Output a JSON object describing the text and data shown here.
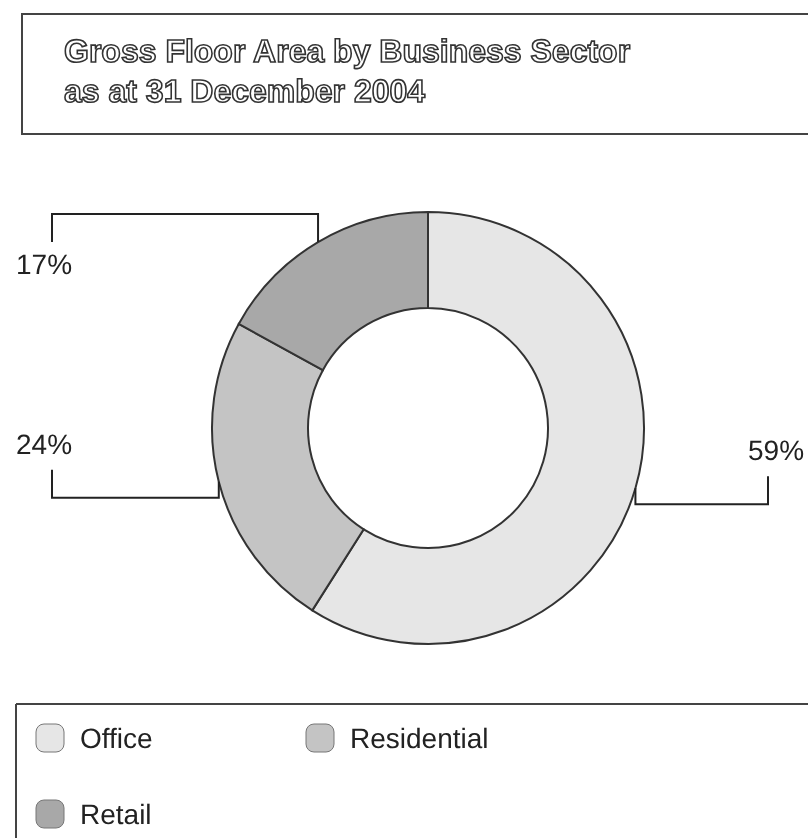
{
  "chart_data": {
    "type": "donut",
    "title": "Gross Floor Area by Business Sector\nas at 31 December 2004",
    "categories": [
      "Office",
      "Residential",
      "Retail"
    ],
    "values": [
      59,
      24,
      17
    ],
    "colors": [
      "#e6e6e6",
      "#c4c4c4",
      "#a8a8a8"
    ],
    "value_labels": [
      "59%",
      "24%",
      "17%"
    ],
    "legend": "bottom"
  }
}
